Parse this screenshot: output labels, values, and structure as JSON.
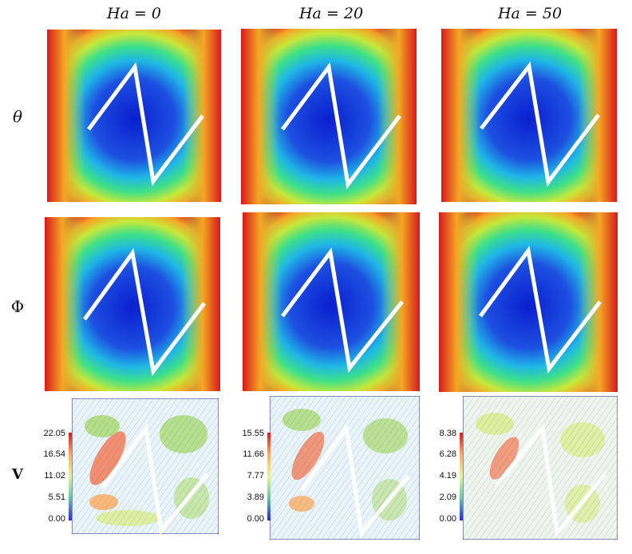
{
  "columns": [
    {
      "label": "Ha = 0"
    },
    {
      "label": "Ha = 20"
    },
    {
      "label": "Ha = 50"
    }
  ],
  "rows": [
    {
      "label": "θ",
      "quantity": "temperature"
    },
    {
      "label": "Φ",
      "quantity": "concentration"
    },
    {
      "label": "V",
      "quantity": "velocity magnitude"
    }
  ],
  "velocity_colorbars": [
    {
      "ha": "0",
      "ticks": [
        "22.05",
        "16.54",
        "11.02",
        "5.51",
        "0.00"
      ]
    },
    {
      "ha": "20",
      "ticks": [
        "15.55",
        "11.66",
        "7.77",
        "3.89",
        "0.00"
      ]
    },
    {
      "ha": "50",
      "ticks": [
        "8.38",
        "6.28",
        "4.19",
        "2.09",
        "0.00"
      ]
    }
  ],
  "colors": {
    "hot": "#d7191c",
    "warm": "#fdae61",
    "mid": "#abdda4",
    "cool": "#2b83ba",
    "cold": "#0a1fd0",
    "baffle": "#ffffff"
  }
}
